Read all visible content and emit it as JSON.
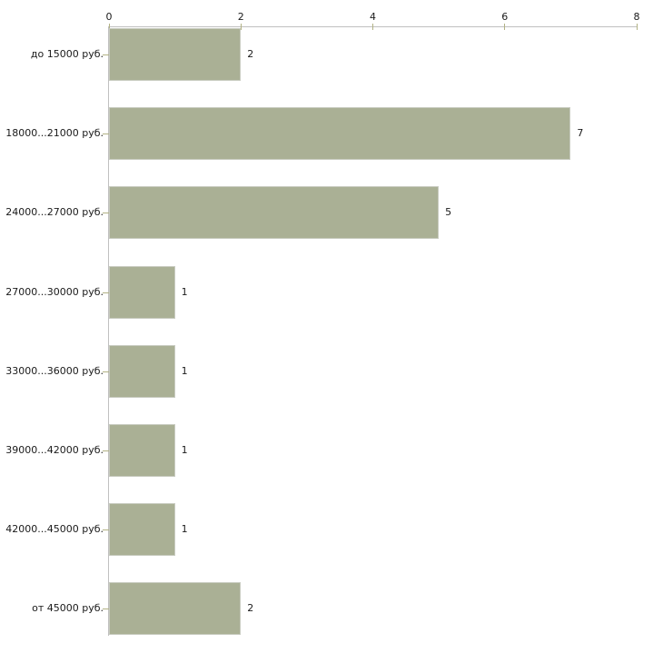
{
  "chart_data": {
    "type": "bar",
    "orientation": "horizontal",
    "title": "",
    "categories": [
      "до 15000 руб.",
      "18000...21000 руб.",
      "24000...27000 руб.",
      "27000...30000 руб.",
      "33000...36000 руб.",
      "39000...42000 руб.",
      "42000...45000 руб.",
      "от 45000 руб."
    ],
    "values": [
      2,
      7,
      5,
      1,
      1,
      1,
      1,
      2
    ],
    "x_axis": {
      "position": "top",
      "min": 0,
      "max": 8,
      "ticks": [
        0,
        2,
        4,
        6,
        8
      ]
    },
    "legend": "none",
    "grid": "off",
    "colors": {
      "bar_fill": "#aab095",
      "bar_border": "#c8cbc0",
      "axis_line": "#c0c0c0",
      "tick_mark": "#b2b284",
      "label_text": "#1a1a1a",
      "background": "#ffffff"
    }
  }
}
